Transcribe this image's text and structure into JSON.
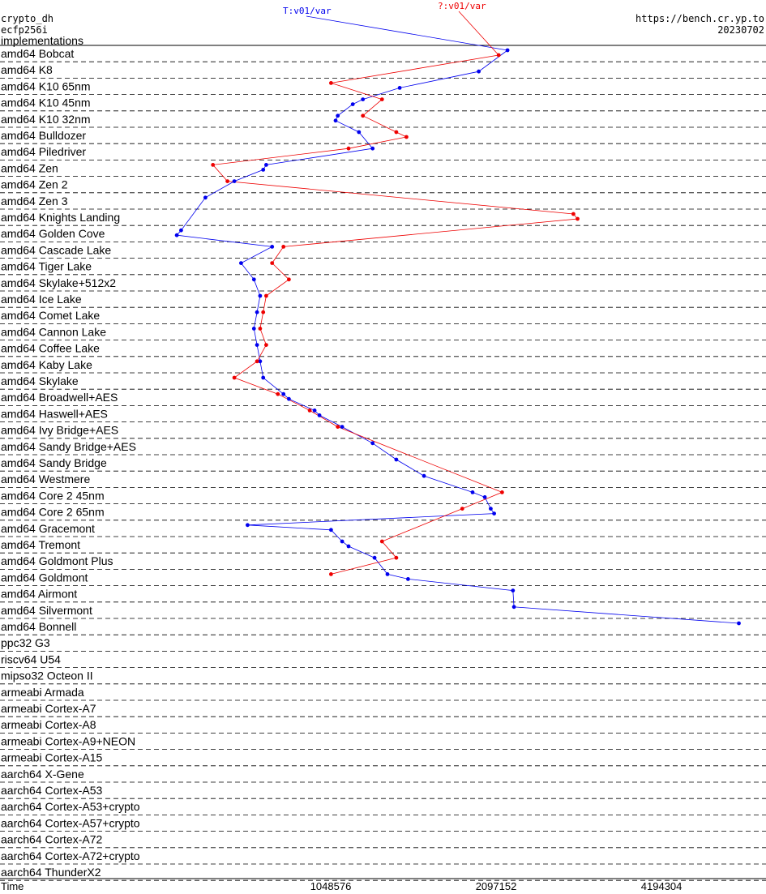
{
  "header": {
    "primitive": "crypto_dh",
    "operation": "ecfp256i",
    "implementations": "implementations",
    "site": "https://bench.cr.yp.to",
    "date": "20230702"
  },
  "series_labels": {
    "t": "T:v01/var",
    "q": "?:v01/var"
  },
  "colors": {
    "t": "#0000ee",
    "q": "#ee0000"
  },
  "chart_data": {
    "type": "line",
    "xlabel": "Time",
    "x_scale": "log2",
    "x_ticks": [
      1048576,
      2097152,
      4194304
    ],
    "xlim": [
      262144,
      6500000
    ],
    "categories": [
      "amd64 Bobcat",
      "amd64 K8",
      "amd64 K10 65nm",
      "amd64 K10 45nm",
      "amd64 K10 32nm",
      "amd64 Bulldozer",
      "amd64 Piledriver",
      "amd64 Zen",
      "amd64 Zen 2",
      "amd64 Zen 3",
      "amd64 Knights Landing",
      "amd64 Golden Cove",
      "amd64 Cascade Lake",
      "amd64 Tiger Lake",
      "amd64 Skylake+512x2",
      "amd64 Ice Lake",
      "amd64 Comet Lake",
      "amd64 Cannon Lake",
      "amd64 Coffee Lake",
      "amd64 Kaby Lake",
      "amd64 Skylake",
      "amd64 Broadwell+AES",
      "amd64 Haswell+AES",
      "amd64 Ivy Bridge+AES",
      "amd64 Sandy Bridge+AES",
      "amd64 Sandy Bridge",
      "amd64 Westmere",
      "amd64 Core 2 45nm",
      "amd64 Core 2 65nm",
      "amd64 Gracemont",
      "amd64 Tremont",
      "amd64 Goldmont Plus",
      "amd64 Goldmont",
      "amd64 Airmont",
      "amd64 Silvermont",
      "amd64 Bonnell",
      "ppc32 G3",
      "riscv64 U54",
      "mipso32 Octeon II",
      "armeabi Armada",
      "armeabi Cortex-A7",
      "armeabi Cortex-A8",
      "armeabi Cortex-A9+NEON",
      "armeabi Cortex-A15",
      "aarch64 X-Gene",
      "aarch64 Cortex-A53",
      "aarch64 Cortex-A53+crypto",
      "aarch64 Cortex-A57+crypto",
      "aarch64 Cortex-A72",
      "aarch64 Cortex-A72+crypto",
      "aarch64 ThunderX2"
    ],
    "series": [
      {
        "name": "T:v01/var",
        "points": [
          [
            0,
            0,
            2200000
          ],
          [
            1,
            1,
            1950000
          ],
          [
            2,
            1,
            1400000
          ],
          [
            3,
            0,
            1200000
          ],
          [
            3,
            1,
            1150000
          ],
          [
            4,
            0,
            1080000
          ],
          [
            4,
            1,
            1070000
          ],
          [
            5,
            0,
            1180000
          ],
          [
            6,
            0,
            1250000
          ],
          [
            7,
            0,
            800000
          ],
          [
            7,
            1,
            790000
          ],
          [
            8,
            0,
            700000
          ],
          [
            9,
            0,
            620000
          ],
          [
            11,
            0,
            560000
          ],
          [
            11,
            1,
            550000
          ],
          [
            12,
            0,
            820000
          ],
          [
            13,
            0,
            720000
          ],
          [
            14,
            0,
            760000
          ],
          [
            15,
            0,
            780000
          ],
          [
            16,
            0,
            770000
          ],
          [
            17,
            0,
            760000
          ],
          [
            18,
            0,
            770000
          ],
          [
            19,
            0,
            780000
          ],
          [
            20,
            0,
            790000
          ],
          [
            21,
            0,
            860000
          ],
          [
            21,
            1,
            880000
          ],
          [
            22,
            0,
            980000
          ],
          [
            22,
            1,
            1000000
          ],
          [
            23,
            0,
            1100000
          ],
          [
            24,
            0,
            1250000
          ],
          [
            25,
            0,
            1380000
          ],
          [
            26,
            0,
            1550000
          ],
          [
            27,
            0,
            1900000
          ],
          [
            27,
            1,
            2000000
          ],
          [
            28,
            0,
            2050000
          ],
          [
            28,
            1,
            2080000
          ],
          [
            29,
            0,
            740000
          ],
          [
            29,
            1,
            1050000
          ],
          [
            30,
            0,
            1100000
          ],
          [
            30,
            1,
            1130000
          ],
          [
            31,
            0,
            1260000
          ],
          [
            32,
            0,
            1330000
          ],
          [
            32,
            1,
            1450000
          ],
          [
            33,
            0,
            2250000
          ],
          [
            34,
            0,
            2260000
          ],
          [
            35,
            0,
            5800000
          ]
        ]
      },
      {
        "name": "?:v01/var",
        "points": [
          [
            0,
            1,
            2120000
          ],
          [
            2,
            0,
            1050000
          ],
          [
            3,
            0,
            1300000
          ],
          [
            4,
            0,
            1200000
          ],
          [
            5,
            0,
            1380000
          ],
          [
            5,
            1,
            1440000
          ],
          [
            6,
            0,
            1130000
          ],
          [
            7,
            0,
            640000
          ],
          [
            8,
            0,
            680000
          ],
          [
            10,
            0,
            2900000
          ],
          [
            10,
            1,
            2950000
          ],
          [
            12,
            0,
            860000
          ],
          [
            13,
            0,
            820000
          ],
          [
            14,
            0,
            880000
          ],
          [
            15,
            0,
            800000
          ],
          [
            16,
            0,
            790000
          ],
          [
            17,
            0,
            780000
          ],
          [
            18,
            0,
            800000
          ],
          [
            19,
            0,
            770000
          ],
          [
            20,
            0,
            700000
          ],
          [
            21,
            0,
            840000
          ],
          [
            22,
            0,
            960000
          ],
          [
            23,
            0,
            1080000
          ],
          [
            27,
            0,
            2150000
          ],
          [
            28,
            0,
            1820000
          ],
          [
            30,
            0,
            1300000
          ],
          [
            31,
            0,
            1380000
          ],
          [
            32,
            0,
            1050000
          ]
        ]
      }
    ]
  }
}
